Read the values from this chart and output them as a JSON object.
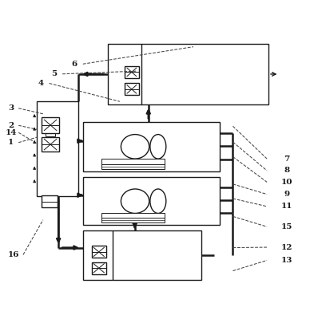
{
  "bg_color": "#ffffff",
  "line_color": "#1a1a1a",
  "label_color": "#1a1a1a",
  "figsize": [
    3.88,
    3.95
  ],
  "dpi": 100
}
